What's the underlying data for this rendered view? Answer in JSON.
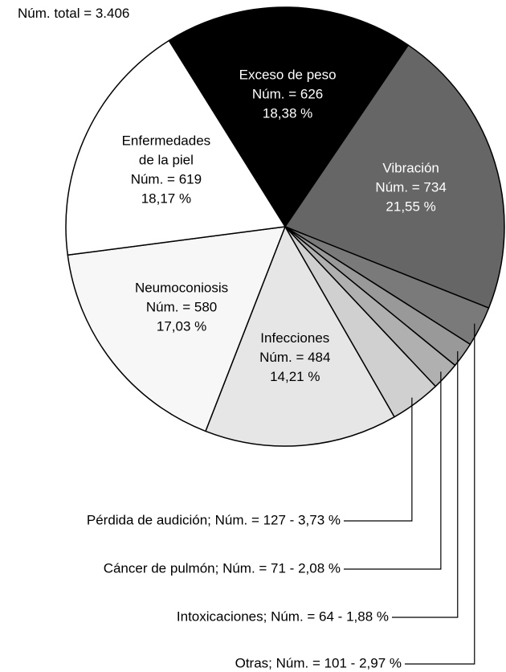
{
  "chart_data": {
    "type": "pie",
    "total_label": "Núm. total = 3.406",
    "total": 3406,
    "labels": [
      [
        "Exceso de peso",
        "Núm. = 626",
        "18,38 %"
      ],
      [
        "Vibración",
        "Núm. = 734",
        "21,55 %"
      ],
      [
        "Otras; Núm. = 101 - 2,97 %"
      ],
      [
        "Intoxicaciones; Núm. = 64 - 1,88 %"
      ],
      [
        "Cáncer de pulmón; Núm. = 71 - 2,08 %"
      ],
      [
        "Pérdida de audición; Núm. = 127 - 3,73 %"
      ],
      [
        "Infecciones",
        "Núm. = 484",
        "14,21 %"
      ],
      [
        "Neumoconiosis",
        "Núm. = 580",
        "17,03 %"
      ],
      [
        "Enfermedades",
        "de la piel",
        "Núm. = 619",
        "18,17 %"
      ]
    ],
    "values": [
      626,
      734,
      101,
      64,
      71,
      127,
      484,
      580,
      619
    ],
    "percentages": [
      18.38,
      21.55,
      2.97,
      1.88,
      2.08,
      3.73,
      14.21,
      17.03,
      18.17
    ],
    "colors": [
      "#000000",
      "#666666",
      "#7a7a7a",
      "#999999",
      "#b0b0b0",
      "#d0d0d0",
      "#e6e6e6",
      "#f7f7f7",
      "#ffffff"
    ]
  }
}
